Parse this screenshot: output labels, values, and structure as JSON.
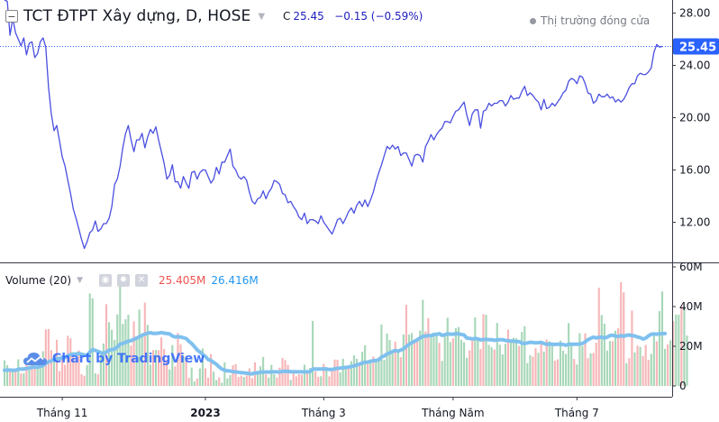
{
  "header": {
    "title": "TCT ĐTPT Xây dựng, D, HOSE",
    "close_label": "C",
    "close_value": "25.45",
    "change": "−0.15 (−0.59%)",
    "market_status": "Thị trường đóng cửa"
  },
  "volume_legend": {
    "name": "Volume (20)",
    "value": "25.405M",
    "ma_value": "26.416M"
  },
  "watermark": "Chart by TradingView",
  "colors": {
    "price_line": "#4a4fe0",
    "price_label_bg": "#2962ff",
    "volume_up": "#a7d7b8",
    "volume_down": "#f7b6b8",
    "volume_ma": "#7fc0ee",
    "volume_value": "#ef5350",
    "volume_ma_value": "#2196f3"
  },
  "icons": [
    "collapse-icon",
    "caret-icon",
    "status-dot-icon",
    "eye-icon",
    "settings-icon",
    "close-icon",
    "tradingview-logo-icon"
  ],
  "chart_data": [
    {
      "type": "line",
      "title": "TCT ĐTPT Xây dựng, D, HOSE",
      "ylim": [
        9,
        29
      ],
      "y_ticks": [
        "28.00",
        "24.00",
        "20.00",
        "16.00",
        "12.00"
      ],
      "y_tick_values": [
        28,
        24,
        20,
        16,
        12
      ],
      "last_value": 25.45,
      "last_value_label": "25.45",
      "x_ticks": [
        "Tháng 11",
        "2023",
        "Tháng 3",
        "Tháng Năm",
        "Tháng 7"
      ],
      "values": [
        29.0,
        28.9,
        26.3,
        27.6,
        26.5,
        26.0,
        25.5,
        26.1,
        24.8,
        25.7,
        25.8,
        24.6,
        24.9,
        25.8,
        26.1,
        25.4,
        22.3,
        20.3,
        19.0,
        19.4,
        18.2,
        17.0,
        16.3,
        15.2,
        14.2,
        13.0,
        12.3,
        11.5,
        10.7,
        10.0,
        10.5,
        11.2,
        11.4,
        12.1,
        11.3,
        11.5,
        11.9,
        11.9,
        12.3,
        13.2,
        14.9,
        15.3,
        16.3,
        17.7,
        18.8,
        19.4,
        18.3,
        17.4,
        18.3,
        18.3,
        18.8,
        17.7,
        18.5,
        19.1,
        18.8,
        19.3,
        18.3,
        17.4,
        16.5,
        15.3,
        15.6,
        16.4,
        15.1,
        15.1,
        14.6,
        15.5,
        15.0,
        14.6,
        15.8,
        15.9,
        15.3,
        15.8,
        16.0,
        16.0,
        15.5,
        15.0,
        15.3,
        16.2,
        15.7,
        16.6,
        16.6,
        17.1,
        17.6,
        16.3,
        16.0,
        15.5,
        15.3,
        15.5,
        15.2,
        14.3,
        13.6,
        13.4,
        13.8,
        13.9,
        14.4,
        13.8,
        14.3,
        14.6,
        15.2,
        15.1,
        14.9,
        14.2,
        14.1,
        13.5,
        13.6,
        13.2,
        12.9,
        12.4,
        12.2,
        12.7,
        11.9,
        12.2,
        12.2,
        12.1,
        11.9,
        12.5,
        12.0,
        11.7,
        11.4,
        11.1,
        11.6,
        12.2,
        12.3,
        11.9,
        12.3,
        12.8,
        13.1,
        12.7,
        13.3,
        13.6,
        13.2,
        13.7,
        13.2,
        13.7,
        14.3,
        15.1,
        15.8,
        16.4,
        17.1,
        17.8,
        17.6,
        17.9,
        17.6,
        17.8,
        17.1,
        17.3,
        17.3,
        16.8,
        16.3,
        17.1,
        17.2,
        17.1,
        16.6,
        17.8,
        18.2,
        18.7,
        18.3,
        18.7,
        19.0,
        19.2,
        19.7,
        19.7,
        19.6,
        20.1,
        20.5,
        20.6,
        20.9,
        21.2,
        20.2,
        19.4,
        20.3,
        20.6,
        20.6,
        19.2,
        20.5,
        20.6,
        21.1,
        20.9,
        21.1,
        21.1,
        21.3,
        21.3,
        20.9,
        21.2,
        21.7,
        21.4,
        21.5,
        21.5,
        22.0,
        22.4,
        21.7,
        21.9,
        21.7,
        21.4,
        21.2,
        20.6,
        21.4,
        20.7,
        20.8,
        21.1,
        20.9,
        21.2,
        21.5,
        21.9,
        22.1,
        22.8,
        23.0,
        22.9,
        22.6,
        23.2,
        23.1,
        22.6,
        21.9,
        21.8,
        21.1,
        21.3,
        21.8,
        21.6,
        21.6,
        21.8,
        21.5,
        21.6,
        21.2,
        21.4,
        21.2,
        21.4,
        21.8,
        22.3,
        22.6,
        22.6,
        23.2,
        23.4,
        23.3,
        23.3,
        23.5,
        23.8,
        25.0,
        25.6,
        25.4,
        25.45
      ]
    },
    {
      "type": "bar",
      "title": "Volume (20)",
      "ylim": [
        0,
        60
      ],
      "y_ticks": [
        "60M",
        "40M",
        "20M",
        "0"
      ],
      "y_tick_values": [
        60,
        40,
        20,
        0
      ],
      "unit": "M",
      "up": [
        1,
        1,
        0,
        1,
        0,
        1,
        0,
        1,
        0,
        1,
        0,
        0,
        1,
        1,
        1,
        0,
        0,
        0,
        1,
        0,
        0,
        0,
        0,
        0,
        0,
        0,
        0,
        0,
        0,
        0,
        1,
        1,
        1,
        1,
        0,
        1,
        1,
        0,
        1,
        1,
        1,
        1,
        1,
        1,
        1,
        1,
        0,
        0,
        1,
        1,
        1,
        0,
        1,
        1,
        0,
        1,
        0,
        0,
        0,
        0,
        1,
        1,
        0,
        0,
        0,
        1,
        0,
        0,
        1,
        1,
        0,
        1,
        1,
        0,
        0,
        0,
        1,
        1,
        0,
        1,
        1,
        1,
        1,
        0,
        0,
        0,
        0,
        1,
        0,
        0,
        0,
        0,
        1,
        1,
        1,
        0,
        1,
        1,
        1,
        0,
        0,
        0,
        0,
        0,
        1,
        0,
        0,
        0,
        0,
        1,
        0,
        1,
        1,
        0,
        0,
        1,
        0,
        1,
        0,
        0,
        0,
        0,
        1,
        1,
        1,
        0,
        1,
        1,
        1,
        0,
        1,
        1,
        0,
        1,
        0,
        1,
        1,
        1,
        1,
        1,
        1,
        1,
        0,
        1,
        0,
        1,
        0,
        1,
        1,
        0,
        0,
        1,
        1,
        0,
        0,
        1,
        1,
        1,
        0,
        1,
        1,
        1,
        1,
        0,
        1,
        1,
        1,
        1,
        1,
        0,
        0,
        1,
        1,
        0,
        0,
        1,
        1,
        1,
        0,
        1,
        1,
        1,
        1,
        0,
        1,
        1,
        1,
        0,
        1,
        1,
        1,
        1,
        0,
        0,
        1,
        0,
        1,
        0,
        1,
        1,
        0,
        0,
        1,
        1,
        1,
        1,
        1,
        0,
        1,
        1,
        1,
        0,
        0,
        1,
        0,
        0,
        0,
        1,
        1,
        1,
        1,
        0,
        1,
        0,
        0,
        0,
        1,
        0,
        0,
        1,
        0,
        1,
        0,
        0,
        0,
        1,
        1,
        0,
        1,
        1,
        1,
        0,
        1,
        0,
        1,
        1,
        0,
        1,
        1,
        0
      ],
      "volume": [
        12.9,
        10.5,
        7.6,
        7.3,
        7.1,
        13.4,
        6.2,
        6.3,
        11.5,
        10.2,
        14.5,
        10.3,
        10.2,
        13.8,
        17.5,
        28.5,
        28.7,
        18.0,
        15.8,
        23.3,
        7.5,
        15.5,
        10.6,
        25.3,
        24.0,
        14.7,
        12.3,
        17.9,
        5.9,
        5.1,
        10.5,
        46.6,
        44.2,
        6.4,
        5.9,
        16.9,
        21.4,
        41.2,
        32.1,
        28.3,
        23.2,
        36.1,
        54.1,
        31.3,
        33.6,
        35.9,
        20.3,
        32.5,
        24.1,
        38.5,
        25.7,
        42.0,
        30.8,
        10.8,
        18.0,
        18.2,
        18.0,
        24.5,
        18.6,
        13.1,
        8.3,
        20.6,
        9.8,
        26.7,
        20.9,
        15.1,
        14.8,
        4.1,
        9.3,
        2.2,
        3.7,
        8.8,
        18.9,
        8.9,
        4.2,
        16.0,
        7.2,
        3.0,
        4.3,
        1.6,
        11.9,
        3.8,
        5.5,
        10.4,
        11.0,
        4.5,
        5.2,
        4.5,
        5.3,
        8.9,
        3.9,
        11.9,
        7.7,
        9.9,
        14.6,
        5.8,
        4.2,
        10.6,
        5.9,
        4.2,
        9.2,
        14.1,
        13.1,
        10.6,
        3.0,
        7.9,
        4.8,
        5.9,
        5.7,
        10.7,
        7.3,
        9.0,
        32.8,
        7.3,
        4.6,
        4.9,
        11.1,
        9.5,
        4.8,
        8.1,
        13.3,
        13.2,
        6.8,
        13.7,
        9.8,
        10.0,
        12.5,
        15.4,
        13.7,
        11.8,
        17.2,
        20.5,
        11.6,
        12.6,
        14.8,
        13.1,
        14.4,
        31.0,
        13.1,
        26.4,
        23.1,
        18.3,
        22.3,
        18.2,
        14.5,
        26.0,
        40.9,
        25.9,
        26.7,
        22.8,
        22.8,
        27.9,
        43.4,
        27.4,
        34.2,
        25.8,
        26.9,
        25.3,
        21.7,
        12.6,
        26.3,
        34.4,
        22.1,
        24.0,
        29.1,
        29.7,
        23.2,
        22.0,
        14.2,
        17.9,
        23.2,
        34.6,
        23.9,
        18.6,
        36.2,
        35.8,
        20.7,
        19.5,
        18.4,
        31.8,
        20.8,
        15.9,
        21.2,
        28.4,
        22.7,
        24.3,
        24.0,
        20.1,
        27.2,
        30.1,
        11.5,
        15.4,
        14.8,
        19.0,
        16.7,
        21.7,
        17.3,
        23.4,
        22.5,
        21.3,
        12.7,
        13.4,
        22.9,
        17.8,
        16.1,
        31.7,
        21.5,
        13.6,
        10.8,
        26.6,
        20.2,
        26.5,
        14.0,
        16.4,
        16.6,
        21.8,
        49.5,
        35.7,
        31.4,
        17.8,
        22.6,
        22.5,
        27.9,
        29.0,
        52.3,
        47.2,
        11.5,
        14.0,
        38.0,
        16.9,
        20.3,
        19.7,
        15.1,
        20.6,
        13.1,
        16.1,
        27.0,
        22.5,
        37.7,
        47.6,
        18.7,
        20.9,
        23.0,
        32.7,
        36.0,
        35.9,
        40.3,
        40.2,
        25.4
      ],
      "ma": [
        7.9,
        8.0,
        8.0,
        7.9,
        7.9,
        8.4,
        8.5,
        8.5,
        8.8,
        9.0,
        9.4,
        9.4,
        9.5,
        9.8,
        10.3,
        11.3,
        12.2,
        12.7,
        13.2,
        13.8,
        13.8,
        14.2,
        14.3,
        15.2,
        15.8,
        16.1,
        16.1,
        16.3,
        16.0,
        15.6,
        15.5,
        17.1,
        18.3,
        17.9,
        17.4,
        16.8,
        16.3,
        17.1,
        18.0,
        18.3,
        18.6,
        19.6,
        21.1,
        21.4,
        21.9,
        22.6,
        22.8,
        23.5,
        24.1,
        24.8,
        25.6,
        26.1,
        26.6,
        26.8,
        26.5,
        26.5,
        26.6,
        26.9,
        26.6,
        26.4,
        26.2,
        25.2,
        24.7,
        24.8,
        24.7,
        24.3,
        23.9,
        22.5,
        21.4,
        19.8,
        18.2,
        17.1,
        15.9,
        14.8,
        13.3,
        12.8,
        11.8,
        10.9,
        9.6,
        8.5,
        7.9,
        7.6,
        7.5,
        7.2,
        7.1,
        6.9,
        6.7,
        6.6,
        6.4,
        6.2,
        6.1,
        6.5,
        6.6,
        6.9,
        7.0,
        7.0,
        7.0,
        7.1,
        7.1,
        7.1,
        7.0,
        7.3,
        7.4,
        7.3,
        7.2,
        7.2,
        7.1,
        7.1,
        7.1,
        7.2,
        7.1,
        7.2,
        8.5,
        8.5,
        8.5,
        8.5,
        8.6,
        8.5,
        8.3,
        8.3,
        8.6,
        8.9,
        9.0,
        9.2,
        9.3,
        9.5,
        9.8,
        10.1,
        10.6,
        11.0,
        11.5,
        11.9,
        12.0,
        12.4,
        12.7,
        12.8,
        13.2,
        14.6,
        15.1,
        16.1,
        16.7,
        17.3,
        17.9,
        17.5,
        18.1,
        18.7,
        19.9,
        20.9,
        21.8,
        22.5,
        23.3,
        24.2,
        25.0,
        25.0,
        25.5,
        25.3,
        25.9,
        26.0,
        26.3,
        25.5,
        25.8,
        26.3,
        26.1,
        26.1,
        26.3,
        26.3,
        25.9,
        25.7,
        24.1,
        24.0,
        23.7,
        23.9,
        23.7,
        23.2,
        23.4,
        23.5,
        23.3,
        23.3,
        23.0,
        23.2,
        23.3,
        23.3,
        22.9,
        22.8,
        22.6,
        22.6,
        22.4,
        22.3,
        21.6,
        21.4,
        21.7,
        22.0,
        21.9,
        21.7,
        21.8,
        21.9,
        21.4,
        21.0,
        21.1,
        21.0,
        20.9,
        21.0,
        21.0,
        20.9,
        20.5,
        21.0,
        21.0,
        21.0,
        21.0,
        21.1,
        21.4,
        22.2,
        23.3,
        24.0,
        24.6,
        24.2,
        24.5,
        24.6,
        24.2,
        24.6,
        25.4,
        25.6,
        25.1,
        24.9,
        25.4,
        25.0,
        25.5,
        25.7,
        25.4,
        25.2,
        24.7,
        24.3,
        23.7,
        24.1,
        25.2,
        26.1,
        26.2,
        26.1,
        26.3,
        26.3,
        26.4
      ]
    }
  ]
}
